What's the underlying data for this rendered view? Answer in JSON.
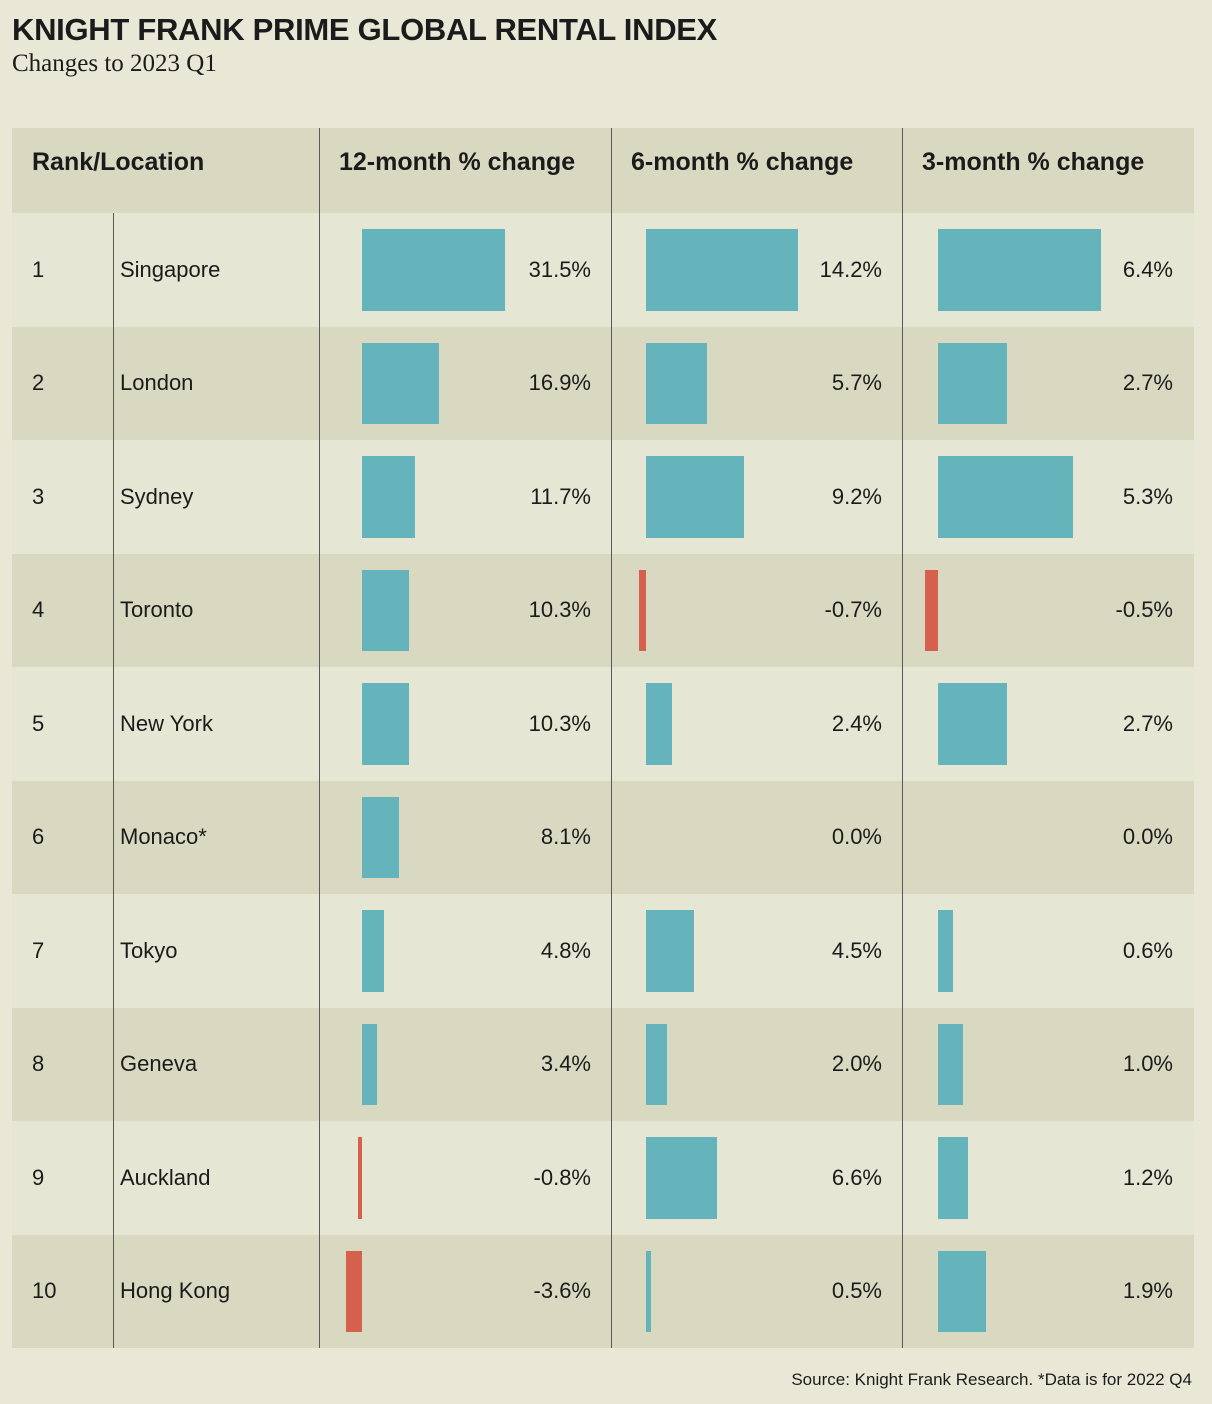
{
  "title": "KNIGHT FRANK PRIME GLOBAL RENTAL INDEX",
  "subtitle": "Changes to 2023 Q1",
  "source": "Source: Knight Frank Research. *Data is for 2022 Q4",
  "colors": {
    "positive": "#66b4bb",
    "negative": "#d4604d",
    "background": "#e9e8d7",
    "header": "#d9d9c2"
  },
  "chart_data": {
    "type": "table",
    "title": "KNIGHT FRANK PRIME GLOBAL RENTAL INDEX",
    "subtitle": "Changes to 2023 Q1",
    "columns": [
      "Rank/Location",
      "12-month % change",
      "6-month % change",
      "3-month % change"
    ],
    "rows": [
      {
        "rank": "1",
        "location": "Singapore",
        "values": [
          31.5,
          14.2,
          6.4
        ],
        "labels": [
          "31.5%",
          "14.2%",
          "6.4%"
        ]
      },
      {
        "rank": "2",
        "location": "London",
        "values": [
          16.9,
          5.7,
          2.7
        ],
        "labels": [
          "16.9%",
          "5.7%",
          "2.7%"
        ]
      },
      {
        "rank": "3",
        "location": "Sydney",
        "values": [
          11.7,
          9.2,
          5.3
        ],
        "labels": [
          "11.7%",
          "9.2%",
          "5.3%"
        ]
      },
      {
        "rank": "4",
        "location": "Toronto",
        "values": [
          10.3,
          -0.7,
          -0.5
        ],
        "labels": [
          "10.3%",
          "-0.7%",
          "-0.5%"
        ]
      },
      {
        "rank": "5",
        "location": "New York",
        "values": [
          10.3,
          2.4,
          2.7
        ],
        "labels": [
          "10.3%",
          "2.4%",
          "2.7%"
        ]
      },
      {
        "rank": "6",
        "location": "Monaco*",
        "values": [
          8.1,
          0.0,
          0.0
        ],
        "labels": [
          "8.1%",
          "0.0%",
          "0.0%"
        ]
      },
      {
        "rank": "7",
        "location": "Tokyo",
        "values": [
          4.8,
          4.5,
          0.6
        ],
        "labels": [
          "4.8%",
          "4.5%",
          "0.6%"
        ]
      },
      {
        "rank": "8",
        "location": "Geneva",
        "values": [
          3.4,
          2.0,
          1.0
        ],
        "labels": [
          "3.4%",
          "2.0%",
          "1.0%"
        ]
      },
      {
        "rank": "9",
        "location": "Auckland",
        "values": [
          -0.8,
          6.6,
          1.2
        ],
        "labels": [
          "-0.8%",
          "6.6%",
          "1.2%"
        ]
      },
      {
        "rank": "10",
        "location": "Hong Kong",
        "values": [
          -3.6,
          0.5,
          1.9
        ],
        "labels": [
          "-3.6%",
          "0.5%",
          "1.9%"
        ]
      }
    ]
  }
}
